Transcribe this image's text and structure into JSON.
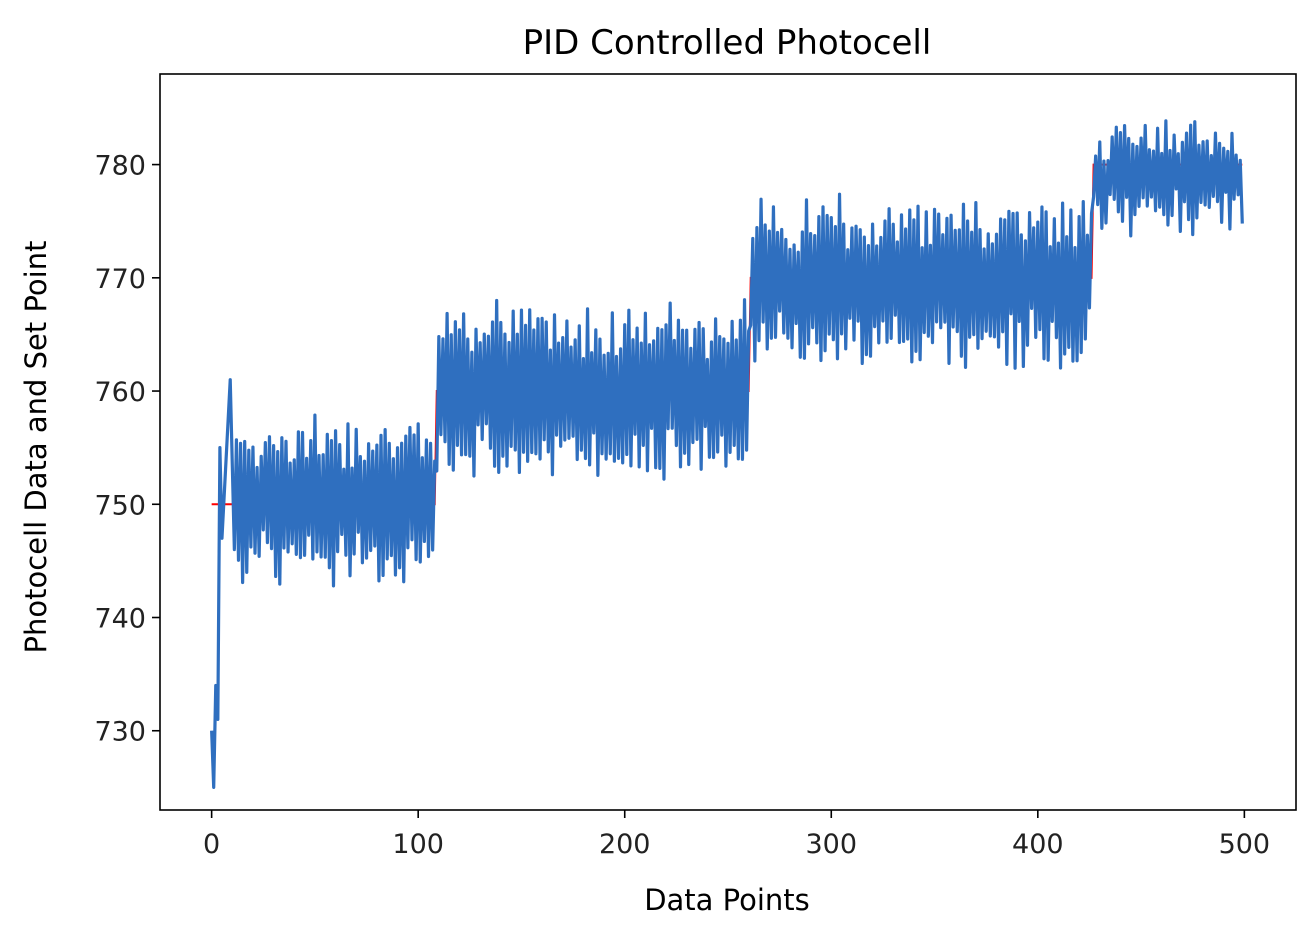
{
  "chart_data": {
    "type": "line",
    "title": "PID Controlled Photocell",
    "xlabel": "Data Points",
    "ylabel": "Photocell Data and Set Point",
    "xlim": [
      -25,
      525
    ],
    "ylim": [
      723,
      788
    ],
    "x_ticks": [
      0,
      100,
      200,
      300,
      400,
      500
    ],
    "y_ticks": [
      730,
      740,
      750,
      760,
      770,
      780
    ],
    "grid": false,
    "colors": {
      "set_point": "#ff0000",
      "photocell": "#2f6fbf"
    },
    "segments": [
      {
        "x_start": 0,
        "x_end": 108,
        "set_point": 750,
        "low": 744,
        "high": 757
      },
      {
        "x_start": 109,
        "x_end": 260,
        "set_point": 760,
        "low": 753,
        "high": 767
      },
      {
        "x_start": 261,
        "x_end": 426,
        "set_point": 770,
        "low": 763,
        "high": 776
      },
      {
        "x_start": 427,
        "x_end": 499,
        "set_point": 780,
        "low": 775,
        "high": 783
      }
    ],
    "photocell_start": [
      {
        "x": 0,
        "y": 730
      },
      {
        "x": 1,
        "y": 725
      },
      {
        "x": 2,
        "y": 734
      },
      {
        "x": 3,
        "y": 731
      },
      {
        "x": 4,
        "y": 755
      },
      {
        "x": 5,
        "y": 747
      },
      {
        "x": 7,
        "y": 754
      },
      {
        "x": 9,
        "y": 761
      },
      {
        "x": 11,
        "y": 746
      }
    ],
    "series": [
      {
        "values": [
          {
            "x": 0,
            "y": 750
          },
          {
            "x": 108,
            "y": 750
          },
          {
            "x": 109,
            "y": 760
          },
          {
            "x": 260,
            "y": 760
          },
          {
            "x": 261,
            "y": 770
          },
          {
            "x": 426,
            "y": 770
          },
          {
            "x": 427,
            "y": 780
          },
          {
            "x": 499,
            "y": 780
          }
        ]
      },
      {
        "values": "oscillating samples around the set point for x = 0..499"
      }
    ]
  }
}
